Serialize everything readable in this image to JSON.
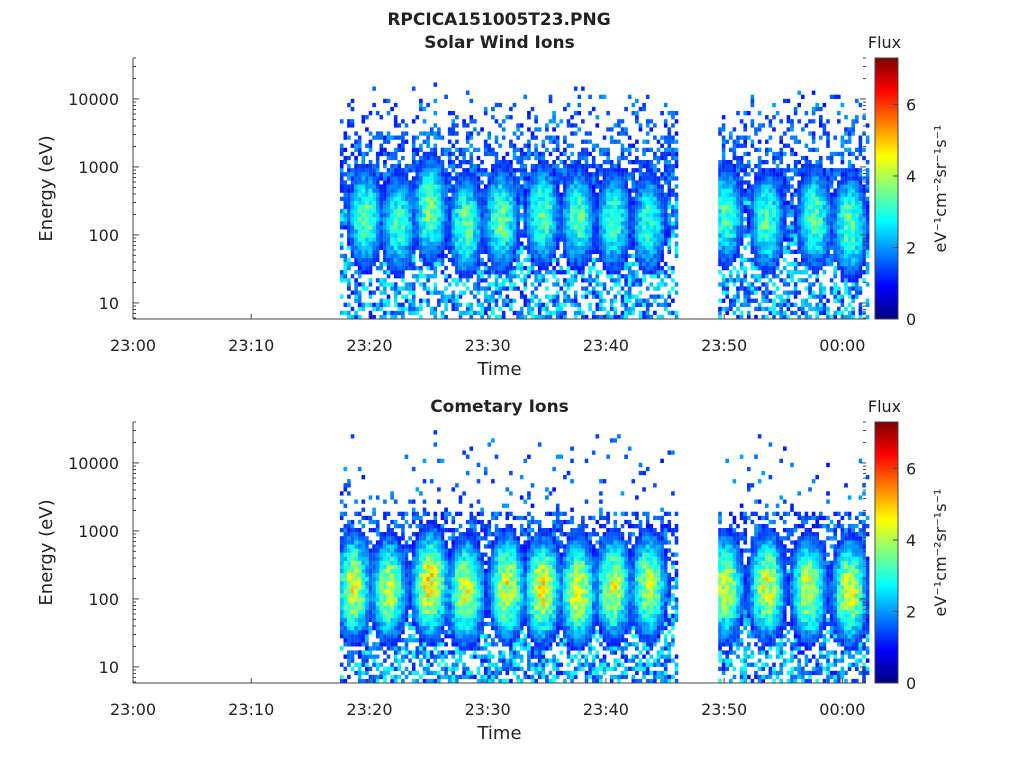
{
  "figure_title": "RPCICA151005T23.PNG",
  "colormap": [
    "#00007f",
    "#0000ff",
    "#0080ff",
    "#00ffff",
    "#80ff80",
    "#ffff00",
    "#ff8000",
    "#ff0000",
    "#7f0000"
  ],
  "chart_data": [
    {
      "type": "heatmap",
      "title": "Solar Wind Ions",
      "xlabel": "Time",
      "ylabel": "Energy (eV)",
      "x_ticks": [
        "23:00",
        "23:10",
        "23:20",
        "23:30",
        "23:40",
        "23:50",
        "00:00"
      ],
      "xlim_minutes": [
        0,
        62
      ],
      "y_ticks": [
        "10",
        "100",
        "1000",
        "10000"
      ],
      "y_scale": "log",
      "ylim": [
        5.8,
        40000
      ],
      "colorbar": {
        "title": "Flux",
        "label": "eV⁻¹cm⁻²sr⁻¹s⁻¹",
        "ticks": [
          "0",
          "2",
          "4",
          "6"
        ],
        "range": [
          0,
          7.3
        ]
      },
      "data_intervals_minutes": [
        [
          17.5,
          46.0
        ],
        [
          49.5,
          62.0
        ]
      ],
      "flux_peak_level": 4.0,
      "bursts": [
        {
          "t": 19.5,
          "e": 180,
          "peak": 3.6
        },
        {
          "t": 22.3,
          "e": 150,
          "peak": 3.4
        },
        {
          "t": 25.0,
          "e": 250,
          "peak": 3.8
        },
        {
          "t": 28.0,
          "e": 140,
          "peak": 3.6
        },
        {
          "t": 31.0,
          "e": 170,
          "peak": 3.7
        },
        {
          "t": 34.5,
          "e": 200,
          "peak": 3.6
        },
        {
          "t": 37.5,
          "e": 180,
          "peak": 3.5
        },
        {
          "t": 40.5,
          "e": 160,
          "peak": 3.4
        },
        {
          "t": 43.5,
          "e": 150,
          "peak": 3.3
        },
        {
          "t": 50.0,
          "e": 200,
          "peak": 3.5
        },
        {
          "t": 53.5,
          "e": 160,
          "peak": 3.5
        },
        {
          "t": 57.5,
          "e": 180,
          "peak": 3.6
        },
        {
          "t": 60.5,
          "e": 140,
          "peak": 3.7
        }
      ]
    },
    {
      "type": "heatmap",
      "title": "Cometary Ions",
      "xlabel": "Time",
      "ylabel": "Energy (eV)",
      "x_ticks": [
        "23:00",
        "23:10",
        "23:20",
        "23:30",
        "23:40",
        "23:50",
        "00:00"
      ],
      "xlim_minutes": [
        0,
        62
      ],
      "y_ticks": [
        "10",
        "100",
        "1000",
        "10000"
      ],
      "y_scale": "log",
      "ylim": [
        5.8,
        40000
      ],
      "colorbar": {
        "title": "Flux",
        "label": "eV⁻¹cm⁻²sr⁻¹s⁻¹",
        "ticks": [
          "0",
          "2",
          "4",
          "6"
        ],
        "range": [
          0,
          7.3
        ]
      },
      "data_intervals_minutes": [
        [
          17.5,
          46.0
        ],
        [
          49.5,
          62.0
        ]
      ],
      "flux_peak_level": 5.0,
      "bursts": [
        {
          "t": 18.5,
          "e": 150,
          "peak": 4.5
        },
        {
          "t": 21.5,
          "e": 140,
          "peak": 4.3
        },
        {
          "t": 25.0,
          "e": 170,
          "peak": 5.0
        },
        {
          "t": 28.0,
          "e": 130,
          "peak": 4.6
        },
        {
          "t": 31.5,
          "e": 150,
          "peak": 4.5
        },
        {
          "t": 34.5,
          "e": 140,
          "peak": 4.7
        },
        {
          "t": 37.5,
          "e": 130,
          "peak": 4.6
        },
        {
          "t": 40.5,
          "e": 150,
          "peak": 4.4
        },
        {
          "t": 43.5,
          "e": 160,
          "peak": 4.3
        },
        {
          "t": 50.0,
          "e": 150,
          "peak": 4.4
        },
        {
          "t": 53.5,
          "e": 150,
          "peak": 4.5
        },
        {
          "t": 57.0,
          "e": 140,
          "peak": 4.4
        },
        {
          "t": 60.5,
          "e": 130,
          "peak": 4.5
        }
      ]
    }
  ]
}
